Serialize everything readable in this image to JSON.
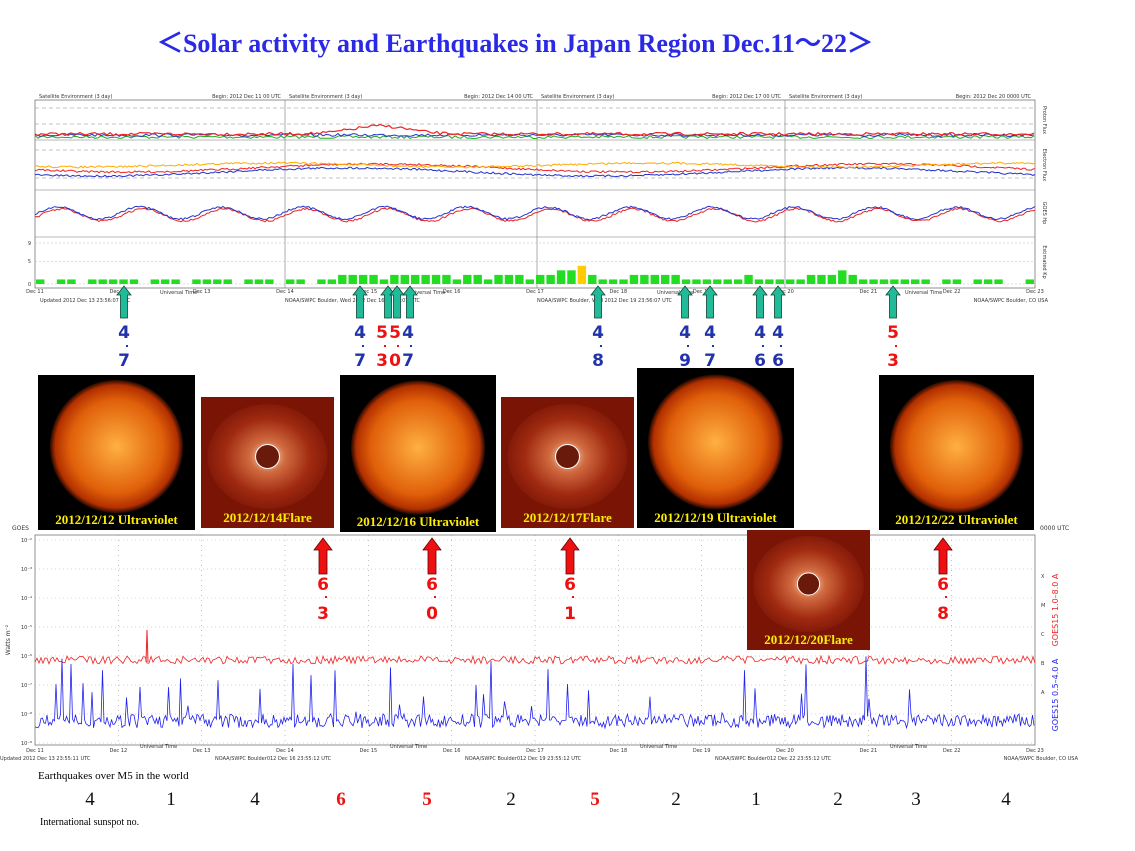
{
  "title": "＜Solar activity and Earthquakes  in Japan Region Dec.11～22＞",
  "top_chart": {
    "headers": [
      "Satellite Environment (3 day)",
      "Begin:  2012 Dec 11 00 UTC",
      "Satellite Environment (3 day)",
      "Begin:  2012 Dec 14 00 UTC",
      "Satellite Environment (3 day)",
      "Begin:  2012 Dec 17 00 UTC",
      "Satellite Environment (3 day)",
      "Begin:  2012 Dec 20 0000 UTC"
    ],
    "panel_labels": [
      "Proton Flux",
      "Electron Flux",
      "GOES Hp",
      "Estimated Kp"
    ],
    "dates": [
      "Dec 11",
      "Dec 12",
      "Dec 13",
      "Dec 14",
      "Dec 15",
      "Dec 16",
      "Dec 17",
      "Dec 18",
      "Dec 19",
      "Dec 20",
      "Dec 21",
      "Dec 22",
      "Dec 23"
    ],
    "axis_label": "Universal Time",
    "footers": [
      "Updated 2012 Dec 13 23:56:07 UTC",
      "NOAA/SWPC Boulder, Wed 2012 Dec 16 23:56:07 UTC",
      "NOAA/SWPC Boulder, Wed 2012 Dec 19 23:56:07 UTC",
      "NOAA/SWPC Boulder, CO USA"
    ],
    "kp": {
      "ylim": [
        0,
        9
      ],
      "yticks": [
        0,
        5,
        9
      ],
      "color": "#22dd22",
      "storm_color": "#ffcc00",
      "storm_level": 4,
      "values": [
        1,
        0,
        1,
        1,
        0,
        1,
        1,
        1,
        1,
        1,
        0,
        1,
        1,
        1,
        0,
        1,
        1,
        1,
        1,
        0,
        1,
        1,
        1,
        0,
        1,
        1,
        0,
        1,
        1,
        2,
        2,
        2,
        2,
        1,
        2,
        2,
        2,
        2,
        2,
        2,
        1,
        2,
        2,
        1,
        2,
        2,
        2,
        1,
        2,
        2,
        3,
        3,
        4,
        2,
        1,
        1,
        1,
        2,
        2,
        2,
        2,
        2,
        1,
        1,
        1,
        1,
        1,
        1,
        2,
        1,
        1,
        1,
        1,
        1,
        2,
        2,
        2,
        3,
        2,
        1,
        1,
        1,
        1,
        1,
        1,
        1,
        0,
        1,
        1,
        0,
        1,
        1,
        1,
        0,
        0,
        1
      ]
    }
  },
  "japan_quakes": [
    {
      "whole": "4",
      "tenth": "7",
      "color": "#2233aa"
    },
    {
      "whole": "4",
      "tenth": "7",
      "color": "#2233aa"
    },
    {
      "whole": "5",
      "tenth": "3",
      "color": "#ee1111"
    },
    {
      "whole": "5",
      "tenth": "0",
      "color": "#ee1111"
    },
    {
      "whole": "4",
      "tenth": "7",
      "color": "#2233aa"
    },
    {
      "whole": "4",
      "tenth": "8",
      "color": "#2233aa"
    },
    {
      "whole": "4",
      "tenth": "9",
      "color": "#2233aa"
    },
    {
      "whole": "4",
      "tenth": "7",
      "color": "#2233aa"
    },
    {
      "whole": "4",
      "tenth": "6",
      "color": "#2233aa"
    },
    {
      "whole": "4",
      "tenth": "6",
      "color": "#2233aa"
    },
    {
      "whole": "5",
      "tenth": "3",
      "color": "#ee1111"
    }
  ],
  "world_quakes": [
    {
      "whole": "6",
      "tenth": "3"
    },
    {
      "whole": "6",
      "tenth": "0"
    },
    {
      "whole": "6",
      "tenth": "1"
    },
    {
      "whole": "6",
      "tenth": "8"
    }
  ],
  "images": [
    {
      "kind": "sun",
      "caption": "2012/12/12 Ultraviolet"
    },
    {
      "kind": "corona",
      "caption": "2012/12/14Flare"
    },
    {
      "kind": "sun",
      "caption": "2012/12/16 Ultraviolet"
    },
    {
      "kind": "corona",
      "caption": "2012/12/17Flare"
    },
    {
      "kind": "sun",
      "caption": "2012/12/19 Ultraviolet"
    },
    {
      "kind": "corona",
      "caption": "2012/12/20Flare"
    },
    {
      "kind": "sun",
      "caption": "2012/12/22 Ultraviolet"
    }
  ],
  "xray_chart": {
    "title": "GOES",
    "end_label": "0000 UTC",
    "ylabel": "Watts m⁻²",
    "yticks": [
      "10⁻²",
      "10⁻³",
      "10⁻⁴",
      "10⁻⁵",
      "10⁻⁶",
      "10⁻⁷",
      "10⁻⁸",
      "10⁻⁹"
    ],
    "classes": [
      "X",
      "M",
      "C",
      "B",
      "A"
    ],
    "series": [
      {
        "name": "GOES15 1.0–8.0 A",
        "color": "#ee2222"
      },
      {
        "name": "GOES15 0.5–4.0 A",
        "color": "#2222ee"
      }
    ],
    "dates": [
      "Dec 11",
      "Dec 12",
      "Dec 13",
      "Dec 14",
      "Dec 15",
      "Dec 16",
      "Dec 17",
      "Dec 18",
      "Dec 19",
      "Dec 20",
      "Dec 21",
      "Dec 22",
      "Dec 23"
    ],
    "axis_label": "Universal Time",
    "footers": [
      "Updated 2012 Dec 13 23:55:11 UTC",
      "NOAA/SWPC Boulder012 Dec 16 23:55:12 UTC",
      "NOAA/SWPC Boulder012 Dec 19 23:55:12 UTC",
      "NOAA/SWPC Boulder012 Dec 22 23:55:12 UTC",
      "NOAA/SWPC Boulder, CO USA"
    ]
  },
  "world_counts_label": "Earthquakes over M5 in the world",
  "world_counts": [
    {
      "value": 4,
      "color": "#111111"
    },
    {
      "value": 1,
      "color": "#111111"
    },
    {
      "value": 4,
      "color": "#111111"
    },
    {
      "value": 6,
      "color": "#ee1111"
    },
    {
      "value": 5,
      "color": "#ee1111"
    },
    {
      "value": 2,
      "color": "#111111"
    },
    {
      "value": 5,
      "color": "#ee1111"
    },
    {
      "value": 2,
      "color": "#111111"
    },
    {
      "value": 1,
      "color": "#111111"
    },
    {
      "value": 2,
      "color": "#111111"
    },
    {
      "value": 3,
      "color": "#111111"
    },
    {
      "value": 4,
      "color": "#111111"
    }
  ],
  "sunspot_label": "International sunspot no."
}
